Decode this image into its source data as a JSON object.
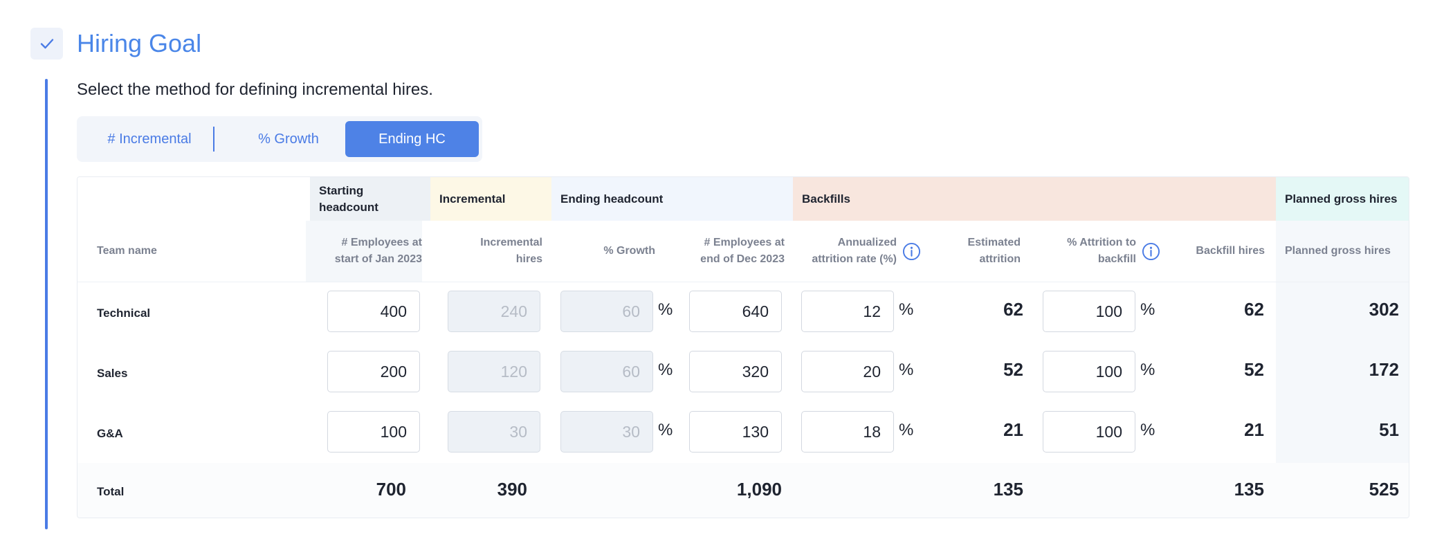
{
  "section": {
    "title": "Hiring Goal",
    "subtitle": "Select the method for defining incremental hires."
  },
  "method_selector": {
    "options": [
      "# Incremental",
      "% Growth",
      "Ending HC"
    ],
    "selected": "Ending HC"
  },
  "table": {
    "groups": {
      "starting": "Starting headcount",
      "incremental": "Incremental",
      "ending": "Ending headcount",
      "backfills": "Backfills",
      "gross": "Planned gross hires"
    },
    "columns": {
      "team": "Team name",
      "start_emp": "# Employees at start of Jan 2023",
      "inc_hires": "Incremental hires",
      "growth": "% Growth",
      "end_emp": "# Employees at end of Dec 2023",
      "attrition_rate": "Annualized attrition rate (%)",
      "est_attrition": "Estimated attrition",
      "attrition_backfill": "% Attrition to backfill",
      "backfill_hires": "Backfill hires",
      "gross_hires": "Planned gross hires"
    },
    "pct_symbol": "%",
    "rows": [
      {
        "team": "Technical",
        "start": "400",
        "inc": "240",
        "growth": "60",
        "end": "640",
        "attr": "12",
        "est": "62",
        "backfill_pct": "100",
        "backfill": "62",
        "gross": "302"
      },
      {
        "team": "Sales",
        "start": "200",
        "inc": "120",
        "growth": "60",
        "end": "320",
        "attr": "20",
        "est": "52",
        "backfill_pct": "100",
        "backfill": "52",
        "gross": "172"
      },
      {
        "team": "G&A",
        "start": "100",
        "inc": "30",
        "growth": "30",
        "end": "130",
        "attr": "18",
        "est": "21",
        "backfill_pct": "100",
        "backfill": "21",
        "gross": "51"
      }
    ],
    "total": {
      "label": "Total",
      "start": "700",
      "inc": "390",
      "end": "1,090",
      "est": "135",
      "backfill": "135",
      "gross": "525"
    }
  },
  "colors": {
    "accent": "#4a7be5",
    "starting_band": "#edf1f5",
    "incremental_band": "#fdf8e6",
    "ending_band": "#f1f6fd",
    "backfills_band": "#f8e6de",
    "gross_band": "#e4f8f6"
  },
  "icons": [
    "check-icon",
    "info-icon"
  ]
}
